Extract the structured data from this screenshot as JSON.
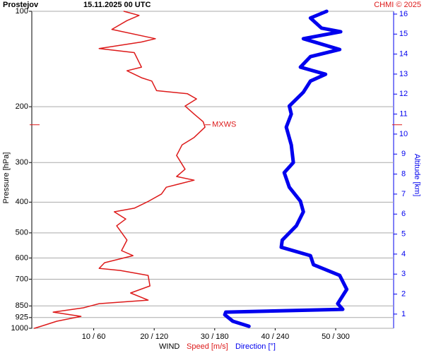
{
  "chart_data": {
    "type": "profile",
    "title": "Prostejov",
    "subtitle": "15.11.2025 00 UTC",
    "credit": "CHMI © 2025",
    "ylabel": "Pressure [hPa]",
    "y2label": "Altitude [km]",
    "xlabel": "WIND",
    "ylim": [
      1000,
      100
    ],
    "ylog": true,
    "yticks": [
      100,
      200,
      300,
      400,
      500,
      600,
      700,
      850,
      925,
      1000
    ],
    "xlim": [
      0,
      60
    ],
    "x2lim": [
      0,
      360
    ],
    "xticks": [
      {
        "value": 10,
        "label": "10 / 60"
      },
      {
        "value": 20,
        "label": "20 / 120"
      },
      {
        "value": 30,
        "label": "30 / 180"
      },
      {
        "value": 40,
        "label": "40 / 240"
      },
      {
        "value": 50,
        "label": "50 / 300"
      }
    ],
    "y2lim": [
      0.29,
      16.14
    ],
    "y2ticks": [
      1,
      2,
      3,
      4,
      5,
      6,
      7,
      8,
      9,
      10,
      11,
      12,
      13,
      14,
      15,
      16
    ],
    "grid": true,
    "annotation": {
      "text": "MXWS",
      "pressure": 228,
      "speed": 28.4,
      "color": "#dd1a1a"
    },
    "series": [
      {
        "name": "Speed [m/s]",
        "color": "#dd1a1a",
        "axis": "x",
        "pressure": [
          100,
          103,
          107,
          114,
          122,
          125,
          131,
          135,
          150,
          154,
          162,
          166,
          178,
          182,
          189,
          199,
          211,
          223,
          232,
          250,
          264,
          285,
          315,
          332,
          341,
          359,
          377,
          397,
          418,
          429,
          452,
          475,
          527,
          569,
          590,
          621,
          647,
          657,
          681,
          735,
          774,
          815,
          836,
          862,
          889,
          917,
          950,
          985,
          1000
        ],
        "values": [
          15.0,
          17.5,
          15.5,
          13.0,
          20.2,
          17.9,
          10.9,
          16.7,
          17.9,
          15.5,
          17.9,
          19.6,
          20.4,
          25.5,
          27.0,
          25.1,
          26.6,
          28.1,
          28.4,
          26.6,
          24.6,
          23.7,
          25.1,
          23.7,
          26.6,
          22.0,
          21.2,
          19.1,
          16.7,
          13.4,
          15.3,
          13.8,
          15.5,
          14.6,
          16.5,
          11.8,
          10.9,
          14.4,
          19.0,
          19.3,
          16.1,
          19.0,
          10.9,
          8.3,
          3.3,
          7.9,
          3.9,
          1.3,
          0.2
        ]
      },
      {
        "name": "Direction [°]",
        "color": "#0000ee",
        "axis": "x2",
        "pressure": [
          100,
          105,
          113,
          116,
          122,
          132,
          139,
          150,
          158,
          166,
          180,
          199,
          211,
          232,
          264,
          300,
          323,
          359,
          397,
          429,
          475,
          527,
          555,
          590,
          630,
          681,
          754,
          836,
          871,
          889,
          906,
          950,
          985
        ],
        "values": [
          291,
          275,
          286,
          305,
          268,
          304,
          275,
          265,
          290,
          275,
          268,
          254,
          256,
          251,
          256,
          258,
          249,
          254,
          265,
          268,
          261,
          247,
          246,
          275,
          278,
          304,
          311,
          302,
          307,
          191,
          190,
          198,
          214
        ]
      }
    ]
  }
}
